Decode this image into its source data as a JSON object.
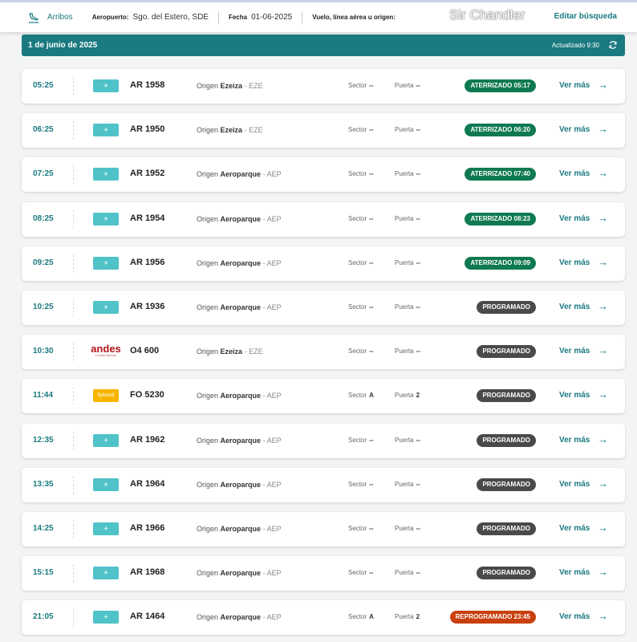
{
  "header": {
    "tab": "Arribos",
    "airport_label": "Aeropuerto:",
    "airport_value": "Sgo. del Estero, SDE",
    "date_label": "Fecha",
    "date_value": "01-06-2025",
    "search_label": "Vuelo, línea aérea u origen:",
    "edit": "Editar búsqueda"
  },
  "banner": {
    "date": "1 de junio de 2025",
    "updated": "Actualizado 9:30"
  },
  "labels": {
    "origin": "Origen",
    "sector": "Sector",
    "gate": "Puerta",
    "more": "Ver más"
  },
  "colors": {
    "teal": "#1a7a80",
    "landed": "#0f7a52",
    "scheduled": "#4a4a4a",
    "rescheduled": "#c9400f"
  },
  "flights": [
    {
      "time": "05:25",
      "airline": "ar",
      "flight": "AR 1958",
      "city": "Ezeiza",
      "code": "EZE",
      "sector": "--",
      "gate": "--",
      "status": "ATERRIZADO 05:17",
      "kind": "landed"
    },
    {
      "time": "06:25",
      "airline": "ar",
      "flight": "AR 1950",
      "city": "Ezeiza",
      "code": "EZE",
      "sector": "--",
      "gate": "--",
      "status": "ATERRIZADO 06:20",
      "kind": "landed"
    },
    {
      "time": "07:25",
      "airline": "ar",
      "flight": "AR 1952",
      "city": "Aeroparque",
      "code": "AEP",
      "sector": "--",
      "gate": "--",
      "status": "ATERRIZADO 07:40",
      "kind": "landed"
    },
    {
      "time": "08:25",
      "airline": "ar",
      "flight": "AR 1954",
      "city": "Aeroparque",
      "code": "AEP",
      "sector": "--",
      "gate": "--",
      "status": "ATERRIZADO 08:23",
      "kind": "landed"
    },
    {
      "time": "09:25",
      "airline": "ar",
      "flight": "AR 1956",
      "city": "Aeroparque",
      "code": "AEP",
      "sector": "--",
      "gate": "--",
      "status": "ATERRIZADO 09:09",
      "kind": "landed"
    },
    {
      "time": "10:25",
      "airline": "ar",
      "flight": "AR 1936",
      "city": "Aeroparque",
      "code": "AEP",
      "sector": "--",
      "gate": "--",
      "status": "PROGRAMADO",
      "kind": "scheduled"
    },
    {
      "time": "10:30",
      "airline": "andes",
      "flight": "O4 600",
      "city": "Ezeiza",
      "code": "EZE",
      "sector": "--",
      "gate": "--",
      "status": "PROGRAMADO",
      "kind": "scheduled"
    },
    {
      "time": "11:44",
      "airline": "flybondi",
      "flight": "FO 5230",
      "city": "Aeroparque",
      "code": "AEP",
      "sector": "A",
      "gate": "2",
      "status": "PROGRAMADO",
      "kind": "scheduled"
    },
    {
      "time": "12:35",
      "airline": "ar",
      "flight": "AR 1962",
      "city": "Aeroparque",
      "code": "AEP",
      "sector": "--",
      "gate": "--",
      "status": "PROGRAMADO",
      "kind": "scheduled"
    },
    {
      "time": "13:35",
      "airline": "ar",
      "flight": "AR 1964",
      "city": "Aeroparque",
      "code": "AEP",
      "sector": "--",
      "gate": "--",
      "status": "PROGRAMADO",
      "kind": "scheduled"
    },
    {
      "time": "14:25",
      "airline": "ar",
      "flight": "AR 1966",
      "city": "Aeroparque",
      "code": "AEP",
      "sector": "--",
      "gate": "--",
      "status": "PROGRAMADO",
      "kind": "scheduled"
    },
    {
      "time": "15:15",
      "airline": "ar",
      "flight": "AR 1968",
      "city": "Aeroparque",
      "code": "AEP",
      "sector": "--",
      "gate": "--",
      "status": "PROGRAMADO",
      "kind": "scheduled"
    },
    {
      "time": "21:05",
      "airline": "ar",
      "flight": "AR 1464",
      "city": "Aeroparque",
      "code": "AEP",
      "sector": "A",
      "gate": "2",
      "status": "REPROGRAMADO 23:45",
      "kind": "rescheduled"
    }
  ],
  "logos": {
    "andes": "andes",
    "andes_sub": "Líneas Aéreas",
    "flybondi": "flybondi"
  },
  "watermark": "Sir Chandler"
}
